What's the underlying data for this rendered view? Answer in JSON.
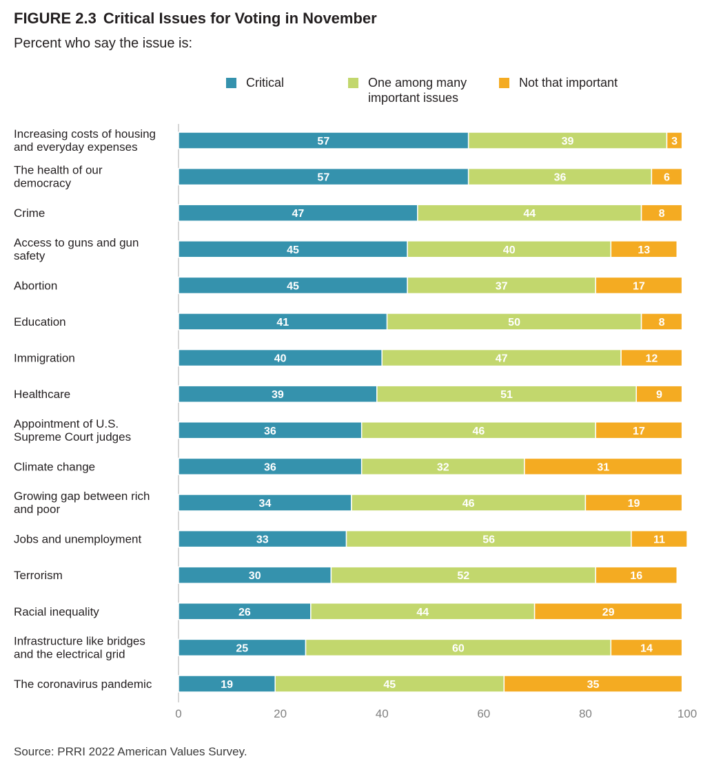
{
  "figure": {
    "number": "FIGURE 2.3",
    "title": "Critical Issues for Voting in November",
    "subtitle": "Percent who say the issue is:"
  },
  "source": "Source: PRRI 2022 American Values Survey.",
  "chart_data": {
    "type": "bar",
    "orientation": "horizontal",
    "stacked": true,
    "title": "Critical Issues for Voting in November",
    "xlabel": "",
    "ylabel": "",
    "xlim": [
      0,
      100
    ],
    "x_ticks": [
      0,
      20,
      40,
      60,
      80,
      100
    ],
    "grid": false,
    "legend_position": "top",
    "categories": [
      [
        "Increasing costs of housing",
        "and everyday expenses"
      ],
      [
        "The health of our",
        "democracy"
      ],
      [
        "Crime"
      ],
      [
        "Access to guns and gun",
        "safety"
      ],
      [
        "Abortion"
      ],
      [
        "Education"
      ],
      [
        "Immigration"
      ],
      [
        "Healthcare"
      ],
      [
        "Appointment of U.S.",
        "Supreme Court judges"
      ],
      [
        "Climate change"
      ],
      [
        "Growing gap between rich",
        "and poor"
      ],
      [
        "Jobs and unemployment"
      ],
      [
        "Terrorism"
      ],
      [
        "Racial inequality"
      ],
      [
        "Infrastructure like bridges",
        "and the electrical grid"
      ],
      [
        "The coronavirus pandemic"
      ]
    ],
    "series": [
      {
        "name": "Critical",
        "legend_lines": [
          "Critical"
        ],
        "color": "#3592ad",
        "values": [
          57,
          57,
          47,
          45,
          45,
          41,
          40,
          39,
          36,
          36,
          34,
          33,
          30,
          26,
          25,
          19
        ]
      },
      {
        "name": "One among many important issues",
        "legend_lines": [
          "One among many",
          "important issues"
        ],
        "color": "#c2d76d",
        "values": [
          39,
          36,
          44,
          40,
          37,
          50,
          47,
          51,
          46,
          32,
          46,
          56,
          52,
          44,
          60,
          45
        ]
      },
      {
        "name": "Not that important",
        "legend_lines": [
          "Not that important"
        ],
        "color": "#f4ab22",
        "values": [
          3,
          6,
          8,
          13,
          17,
          8,
          12,
          9,
          17,
          31,
          19,
          11,
          16,
          29,
          14,
          35
        ]
      }
    ]
  }
}
